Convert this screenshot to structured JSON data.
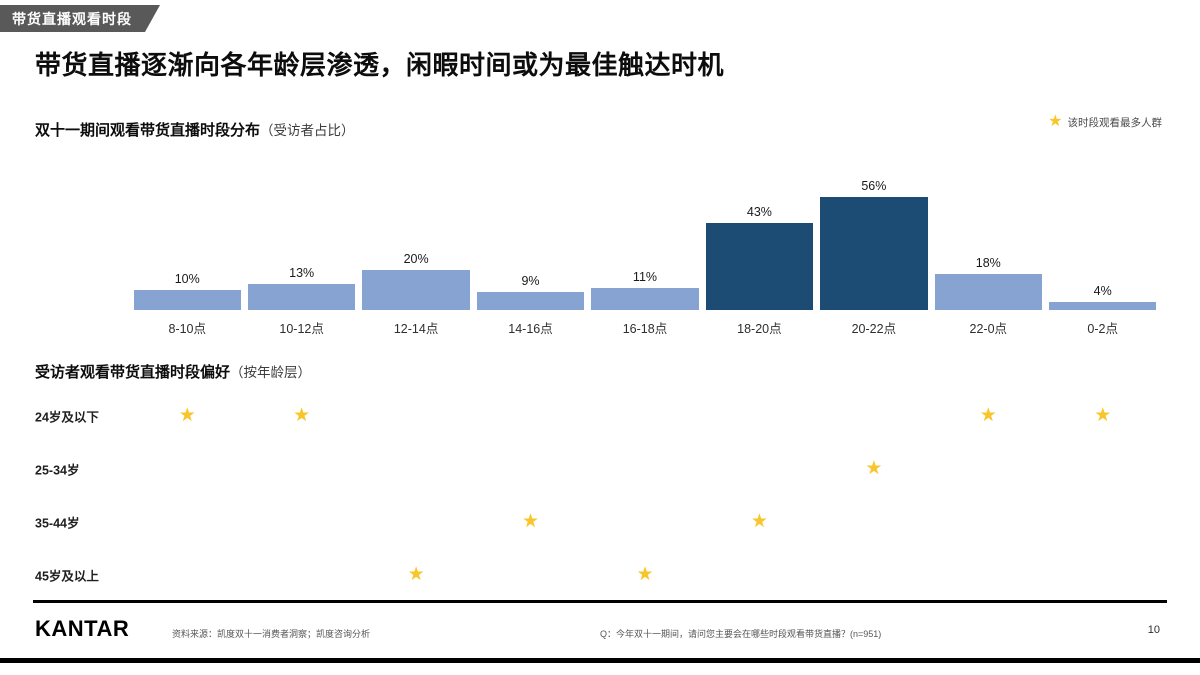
{
  "header": {
    "tag": "带货直播观看时段",
    "title": "带货直播逐渐向各年龄层渗透，闲暇时间或为最佳触达时机"
  },
  "chart": {
    "title_bold": "双十一期间观看带货直播时段分布",
    "title_light": "（受访者占比）",
    "legend": {
      "star": "★",
      "label": "该时段观看最多人群"
    },
    "chart_data": {
      "type": "bar",
      "categories": [
        "8-10点",
        "10-12点",
        "12-14点",
        "14-16点",
        "16-18点",
        "18-20点",
        "20-22点",
        "22-0点",
        "0-2点"
      ],
      "values": [
        10,
        13,
        20,
        9,
        11,
        43,
        56,
        18,
        4
      ],
      "value_suffix": "%",
      "highlight_indices": [
        5,
        6
      ],
      "title": "双十一期间观看带货直播时段分布（受访者占比）",
      "xlabel": "",
      "ylabel": "",
      "ylim": [
        0,
        60
      ],
      "grid": false,
      "legend_position": "top-right",
      "colors": {
        "bar": "#87a3d1",
        "highlight": "#1c4b74",
        "star": "#f8c62a"
      }
    }
  },
  "preference": {
    "title_bold": "受访者观看带货直播时段偏好",
    "title_light": "（按年龄层）",
    "star_glyph": "★",
    "rows": [
      {
        "label": "24岁及以下",
        "star_columns": [
          0,
          1,
          7,
          8
        ]
      },
      {
        "label": "25-34岁",
        "star_columns": [
          6
        ]
      },
      {
        "label": "35-44岁",
        "star_columns": [
          3,
          5
        ]
      },
      {
        "label": "45岁及以上",
        "star_columns": [
          2,
          4
        ]
      }
    ]
  },
  "footer": {
    "logo": "KANTAR",
    "source": "资料来源：凯度双十一消费者洞察；凯度咨询分析",
    "question": "Q：今年双十一期间，请问您主要会在哪些时段观看带货直播？(n=951)",
    "page": "10"
  }
}
